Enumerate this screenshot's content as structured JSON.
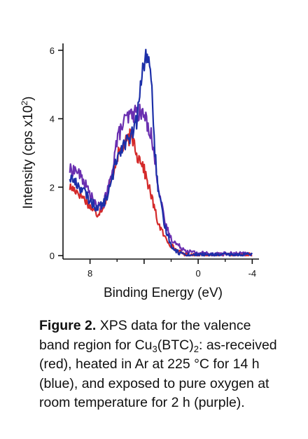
{
  "chart_data": {
    "type": "line",
    "xlabel": "Binding Energy (eV)",
    "ylabel": "Intensity (cps x10",
    "ylabel_sup": "2",
    "ylabel_close": ")",
    "xlim": [
      10,
      -4.5
    ],
    "ylim": [
      -0.1,
      6.2
    ],
    "x_reversed": true,
    "grid": false,
    "x_ticks": [
      8,
      4,
      0,
      -4
    ],
    "x_tick_labels": [
      "8",
      "",
      "0",
      "-4"
    ],
    "x_minor_ticks": [
      6,
      2,
      -2
    ],
    "y_ticks": [
      0,
      2,
      4,
      6
    ],
    "y_tick_labels": [
      "0",
      "2",
      "4",
      "6"
    ],
    "series": [
      {
        "color": "#d42a2a",
        "x": [
          9.5,
          9.0,
          8.5,
          8.0,
          7.5,
          7.0,
          6.5,
          6.0,
          5.5,
          5.0,
          4.7,
          4.5,
          4.2,
          4.0,
          3.5,
          3.0,
          2.5,
          2.0,
          1.5,
          1.0,
          0.5,
          0.0,
          -0.5,
          -1.0,
          -2.0,
          -3.0,
          -4.0
        ],
        "y": [
          2.0,
          1.9,
          1.7,
          1.45,
          1.2,
          1.45,
          2.1,
          2.9,
          3.2,
          3.5,
          3.3,
          2.9,
          2.8,
          2.5,
          1.8,
          1.0,
          0.55,
          0.3,
          0.12,
          0.05,
          0.02,
          0.02,
          0.02,
          0.02,
          0.02,
          0.02,
          0.02
        ]
      },
      {
        "color": "#6a2fb0",
        "x": [
          9.5,
          9.0,
          8.5,
          8.0,
          7.5,
          7.0,
          6.5,
          6.0,
          5.5,
          5.0,
          4.5,
          4.0,
          3.5,
          3.0,
          2.5,
          2.0,
          1.5,
          1.0,
          0.5,
          0.0,
          -0.5,
          -1.0,
          -2.0,
          -3.0,
          -4.0
        ],
        "y": [
          2.5,
          2.5,
          2.2,
          1.8,
          1.4,
          1.5,
          2.2,
          3.4,
          3.9,
          4.1,
          4.2,
          4.1,
          3.6,
          2.2,
          1.0,
          0.5,
          0.3,
          0.18,
          0.1,
          0.08,
          0.07,
          0.06,
          0.05,
          0.05,
          0.05
        ]
      },
      {
        "color": "#1c2fa8",
        "x": [
          9.5,
          9.0,
          8.5,
          8.0,
          7.5,
          7.0,
          6.5,
          6.0,
          5.5,
          5.0,
          4.5,
          4.2,
          4.0,
          3.8,
          3.6,
          3.4,
          3.2,
          3.0,
          2.5,
          2.0,
          1.5,
          1.0,
          0.5,
          0.0,
          -0.5,
          -1.0,
          -2.0,
          -3.0,
          -4.0
        ],
        "y": [
          2.3,
          2.1,
          1.9,
          1.6,
          1.4,
          1.5,
          2.0,
          2.9,
          3.3,
          3.4,
          4.0,
          5.2,
          5.6,
          5.9,
          5.7,
          4.6,
          3.1,
          2.0,
          0.9,
          0.3,
          0.1,
          0.04,
          0.02,
          0.02,
          0.02,
          0.02,
          0.02,
          0.02,
          0.02
        ]
      }
    ]
  },
  "caption": {
    "label": "Figure 2.",
    "text_1": " XPS data for the valence band region for Cu",
    "sub_1": "3",
    "text_2": "(BTC)",
    "sub_2": "2",
    "text_3": ": as-received (red), heated in Ar at 225 °C for 14 h (blue), and exposed to pure oxygen at room temperature for 2 h (purple)."
  }
}
